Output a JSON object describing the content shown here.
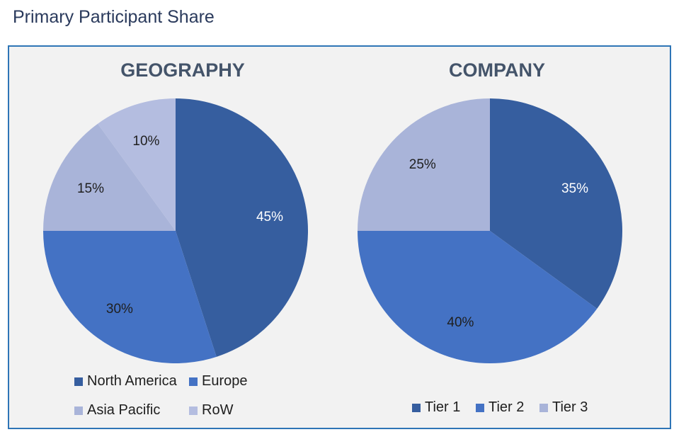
{
  "page_title": "Primary Participant Share",
  "colors": {
    "dark_blue": "#365e9f",
    "medium_blue": "#4472c4",
    "light_blue": "#a9b4d9",
    "lighter_blue": "#b4bde0",
    "panel_border": "#2e75b6"
  },
  "chart_data": [
    {
      "type": "pie",
      "title": "GEOGRAPHY",
      "categories": [
        "North America",
        "Europe",
        "Asia Pacific",
        "RoW"
      ],
      "values": [
        45,
        30,
        15,
        10
      ],
      "labels": [
        "45%",
        "30%",
        "15%",
        "10%"
      ],
      "colors": [
        "#365e9f",
        "#4472c4",
        "#a9b4d9",
        "#b4bde0"
      ],
      "legend": "bottom"
    },
    {
      "type": "pie",
      "title": "COMPANY",
      "categories": [
        "Tier 1",
        "Tier 2",
        "Tier 3"
      ],
      "values": [
        35,
        40,
        25
      ],
      "labels": [
        "35%",
        "40%",
        "25%"
      ],
      "colors": [
        "#365e9f",
        "#4472c4",
        "#a9b4d9"
      ],
      "legend": "bottom"
    }
  ]
}
